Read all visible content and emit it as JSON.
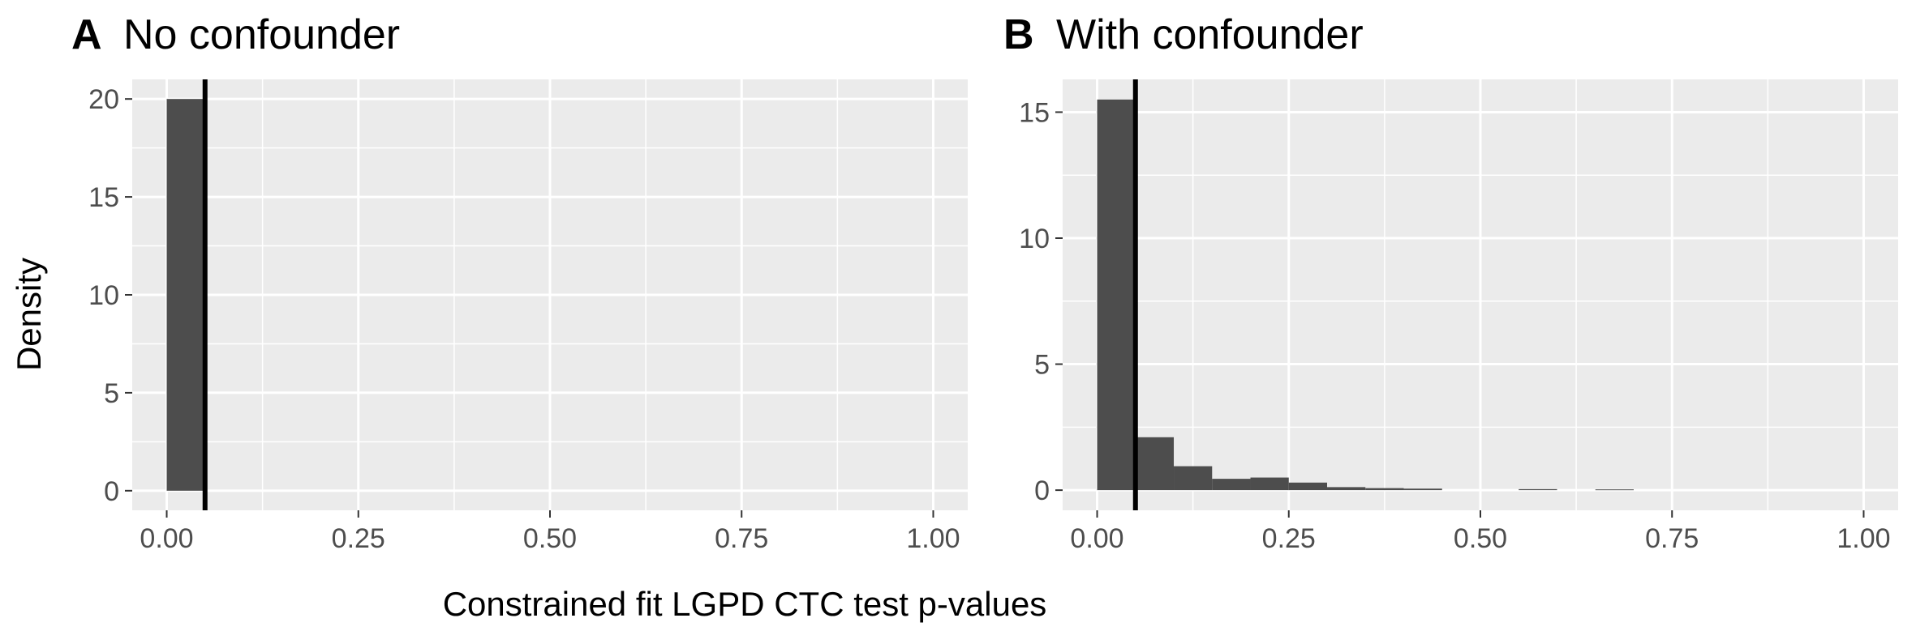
{
  "shared": {
    "xlabel": "Constrained fit LGPD CTC test p-values",
    "ylabel": "Density"
  },
  "chart_data": [
    {
      "type": "bar",
      "panel_tag": "A",
      "title": "No confounder",
      "xlabel": "Constrained fit LGPD CTC test p-values",
      "ylabel": "Density",
      "xlim": [
        -0.045,
        1.045
      ],
      "ylim": [
        -1,
        21
      ],
      "x_ticks": [
        0,
        0.25,
        0.5,
        0.75,
        1
      ],
      "x_tick_labels": [
        "0.00",
        "0.25",
        "0.50",
        "0.75",
        "1.00"
      ],
      "y_ticks": [
        0,
        5,
        10,
        15,
        20
      ],
      "y_tick_labels": [
        "0",
        "5",
        "10",
        "15",
        "20"
      ],
      "bin_width": 0.05,
      "bins_x_start": [
        0.0
      ],
      "values": [
        20
      ],
      "vline_x": 0.05,
      "bar_color": "#4d4d4d",
      "panel_bg": "#ebebeb",
      "grid": true
    },
    {
      "type": "bar",
      "panel_tag": "B",
      "title": "With confounder",
      "xlabel": "Constrained fit LGPD CTC test p-values",
      "ylabel": "Density",
      "xlim": [
        -0.045,
        1.045
      ],
      "ylim": [
        -0.8,
        16.3
      ],
      "x_ticks": [
        0,
        0.25,
        0.5,
        0.75,
        1
      ],
      "x_tick_labels": [
        "0.00",
        "0.25",
        "0.50",
        "0.75",
        "1.00"
      ],
      "y_ticks": [
        0,
        5,
        10,
        15
      ],
      "y_tick_labels": [
        "0",
        "5",
        "10",
        "15"
      ],
      "bin_width": 0.05,
      "bins_x_start": [
        0.0,
        0.05,
        0.1,
        0.15,
        0.2,
        0.25,
        0.3,
        0.35,
        0.4,
        0.55,
        0.65
      ],
      "values": [
        15.5,
        2.1,
        0.95,
        0.45,
        0.5,
        0.3,
        0.12,
        0.08,
        0.06,
        0.04,
        0.03
      ],
      "vline_x": 0.05,
      "bar_color": "#4d4d4d",
      "panel_bg": "#ebebeb",
      "grid": true
    }
  ]
}
